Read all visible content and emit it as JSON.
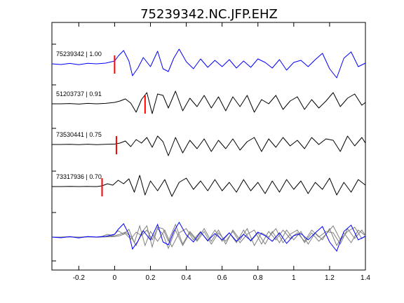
{
  "chart_data": {
    "type": "line",
    "title": "75239342.NC.JFP.EHZ",
    "xlabel": "",
    "ylabel": "",
    "xlim": [
      -0.35,
      1.4
    ],
    "x_ticks": [
      -0.2,
      0,
      0.2,
      0.4,
      0.6,
      0.8,
      1,
      1.2,
      1.4
    ],
    "x_tick_labels": [
      "-0.2",
      "0",
      "0.2",
      "0.4",
      "0.6",
      "0.8",
      "1",
      "1.2",
      "1.4"
    ],
    "grid": false,
    "colors": {
      "reference": "#0000ff",
      "match": "#000000",
      "pick": "#ff0000",
      "overlay": "#808080"
    },
    "series": [
      {
        "label": "75239342 | 1.00",
        "pick_time": 0.0,
        "color": "#0000ff",
        "t": [
          -0.35,
          -0.3,
          -0.25,
          -0.2,
          -0.15,
          -0.1,
          -0.05,
          0.0,
          0.02,
          0.05,
          0.08,
          0.1,
          0.13,
          0.16,
          0.2,
          0.24,
          0.27,
          0.3,
          0.33,
          0.36,
          0.4,
          0.44,
          0.48,
          0.52,
          0.56,
          0.6,
          0.64,
          0.68,
          0.72,
          0.76,
          0.8,
          0.84,
          0.88,
          0.92,
          0.96,
          1.0,
          1.04,
          1.08,
          1.12,
          1.16,
          1.2,
          1.24,
          1.28,
          1.32,
          1.36,
          1.4
        ],
        "y": [
          0.0,
          -0.05,
          0.03,
          -0.06,
          0.04,
          0.0,
          0.05,
          0.2,
          0.55,
          0.95,
          0.2,
          -0.85,
          -0.3,
          0.45,
          -0.2,
          0.9,
          -0.35,
          -0.55,
          0.4,
          1.05,
          0.15,
          -0.35,
          0.35,
          -0.25,
          0.25,
          -0.2,
          0.3,
          -0.3,
          0.2,
          -0.25,
          0.35,
          0.1,
          -0.3,
          0.3,
          -0.45,
          0.1,
          0.25,
          -0.2,
          0.3,
          0.75,
          -0.35,
          -1.0,
          0.4,
          0.85,
          -0.2,
          0.05
        ]
      },
      {
        "label": "51203737 | 0.91",
        "pick_time": 0.17,
        "color": "#000000",
        "t": [
          -0.35,
          -0.3,
          -0.25,
          -0.2,
          -0.15,
          -0.1,
          -0.05,
          0.0,
          0.03,
          0.06,
          0.09,
          0.12,
          0.15,
          0.18,
          0.21,
          0.24,
          0.27,
          0.3,
          0.34,
          0.38,
          0.42,
          0.46,
          0.5,
          0.54,
          0.58,
          0.62,
          0.66,
          0.7,
          0.74,
          0.78,
          0.82,
          0.86,
          0.9,
          0.94,
          0.98,
          1.02,
          1.06,
          1.1,
          1.14,
          1.18,
          1.22,
          1.26,
          1.3,
          1.34,
          1.38,
          1.4
        ],
        "y": [
          0.0,
          0.0,
          0.02,
          -0.02,
          0.03,
          0.0,
          0.03,
          0.1,
          0.2,
          0.35,
          0.05,
          -0.6,
          0.3,
          0.8,
          -0.7,
          0.7,
          0.6,
          -0.3,
          0.9,
          -0.5,
          0.4,
          -0.2,
          0.6,
          -0.3,
          0.5,
          -0.5,
          0.5,
          -0.2,
          0.6,
          -0.6,
          0.3,
          0.0,
          0.6,
          -0.4,
          0.2,
          0.5,
          -0.4,
          0.3,
          -0.3,
          0.2,
          0.8,
          -0.2,
          0.4,
          0.7,
          -0.1,
          0.1
        ]
      },
      {
        "label": "73530441 | 0.75",
        "pick_time": 0.01,
        "color": "#000000",
        "t": [
          -0.35,
          -0.3,
          -0.25,
          -0.2,
          -0.15,
          -0.1,
          -0.05,
          0.0,
          0.03,
          0.06,
          0.09,
          0.12,
          0.15,
          0.18,
          0.21,
          0.24,
          0.27,
          0.3,
          0.34,
          0.38,
          0.42,
          0.46,
          0.5,
          0.54,
          0.58,
          0.62,
          0.66,
          0.7,
          0.74,
          0.78,
          0.82,
          0.86,
          0.9,
          0.94,
          0.98,
          1.02,
          1.06,
          1.1,
          1.14,
          1.18,
          1.22,
          1.26,
          1.3,
          1.34,
          1.38,
          1.4
        ],
        "y": [
          0.0,
          0.0,
          0.01,
          -0.01,
          0.02,
          -0.01,
          0.01,
          0.03,
          0.1,
          0.25,
          -0.15,
          0.35,
          0.1,
          0.5,
          -0.2,
          0.6,
          0.2,
          -0.8,
          0.5,
          -0.6,
          0.3,
          -0.3,
          0.4,
          -0.5,
          0.3,
          -0.3,
          0.4,
          -0.4,
          0.2,
          0.5,
          -0.5,
          0.4,
          -0.2,
          0.5,
          -0.1,
          0.3,
          -0.3,
          0.5,
          0.0,
          0.4,
          0.3,
          -0.5,
          0.6,
          -0.1,
          0.5,
          0.1
        ]
      },
      {
        "label": "73317936 | 0.70",
        "pick_time": -0.07,
        "color": "#000000",
        "t": [
          -0.35,
          -0.3,
          -0.25,
          -0.2,
          -0.15,
          -0.1,
          -0.07,
          -0.04,
          -0.01,
          0.02,
          0.05,
          0.08,
          0.11,
          0.14,
          0.17,
          0.2,
          0.24,
          0.28,
          0.32,
          0.36,
          0.4,
          0.44,
          0.48,
          0.52,
          0.56,
          0.6,
          0.64,
          0.68,
          0.72,
          0.76,
          0.8,
          0.84,
          0.88,
          0.92,
          0.96,
          1.0,
          1.04,
          1.08,
          1.12,
          1.16,
          1.2,
          1.24,
          1.28,
          1.32,
          1.36,
          1.4
        ],
        "y": [
          0.0,
          0.0,
          0.01,
          0.0,
          0.01,
          0.0,
          0.05,
          0.2,
          0.1,
          0.45,
          0.2,
          0.55,
          -0.4,
          0.8,
          -0.6,
          0.4,
          -0.3,
          0.5,
          -0.7,
          0.3,
          0.6,
          -0.2,
          0.4,
          -0.3,
          0.5,
          -0.3,
          0.3,
          -0.4,
          0.5,
          -0.3,
          0.3,
          -0.5,
          0.4,
          -0.4,
          0.5,
          -0.2,
          0.4,
          -0.5,
          0.3,
          -0.2,
          0.6,
          -0.6,
          0.3,
          -0.4,
          0.5,
          0.1
        ]
      }
    ],
    "overlay": {
      "shows": [
        "75239342 | 1.00",
        "51203737 | 0.91",
        "73530441 | 0.75",
        "73317936 | 0.70"
      ],
      "reference_color": "#0000ff",
      "others_color": "#808080"
    }
  }
}
